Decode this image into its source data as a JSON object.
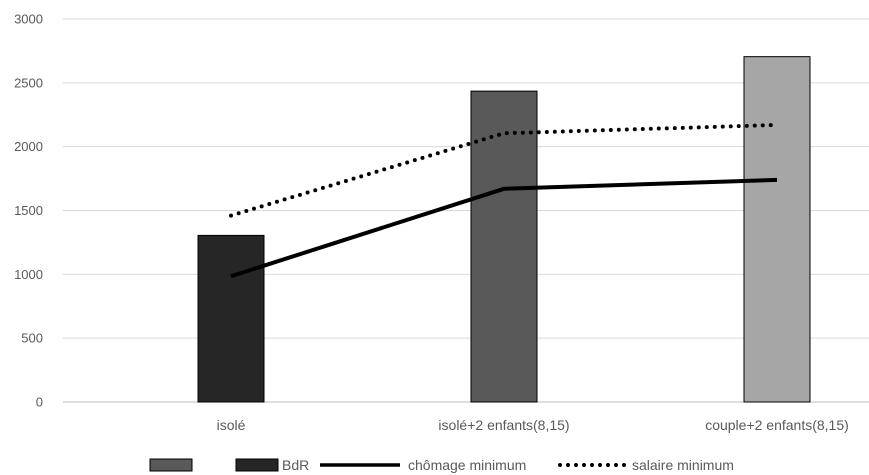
{
  "chart_data": {
    "type": "bar",
    "title": "",
    "xlabel": "",
    "ylabel": "",
    "categories": [
      "isolé",
      "isolé+2 enfants(8,15)",
      "couple+2 enfants(8,15)"
    ],
    "ylim": [
      0,
      3000
    ],
    "yticks": [
      0,
      500,
      1000,
      1500,
      2000,
      2500,
      3000
    ],
    "grid": true,
    "legend_position": "bottom",
    "bars": [
      {
        "category": "isolé",
        "value": 1305,
        "color": "#262626"
      },
      {
        "category": "isolé+2 enfants(8,15)",
        "value": 2435,
        "color": "#595959"
      },
      {
        "category": "couple+2 enfants(8,15)",
        "value": 2705,
        "color": "#a6a6a6"
      }
    ],
    "series": [
      {
        "name": "chômage minimum",
        "type": "line",
        "style": "solid",
        "color": "#000000",
        "values": [
          985,
          1670,
          1740
        ]
      },
      {
        "name": "salaire minimum",
        "type": "line",
        "style": "dotted",
        "color": "#000000",
        "values": [
          1460,
          2105,
          2170
        ]
      }
    ],
    "legend": [
      {
        "label": "",
        "kind": "box",
        "color": "#595959"
      },
      {
        "label": "BdR",
        "kind": "box",
        "color": "#262626"
      },
      {
        "label": "chômage minimum",
        "kind": "line",
        "style": "solid"
      },
      {
        "label": "salaire minimum",
        "kind": "line",
        "style": "dotted"
      }
    ]
  }
}
